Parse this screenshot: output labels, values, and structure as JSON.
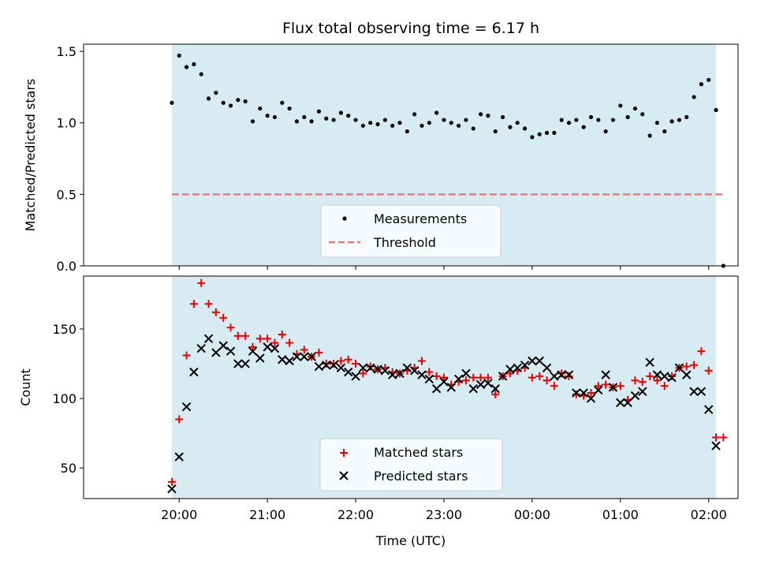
{
  "chart_data": [
    {
      "type": "scatter",
      "title": "Flux total observing time = 6.17 h",
      "ylabel": "Matched/Predicted stars",
      "ylim": [
        0,
        1.55
      ],
      "yticks": [
        "0.0",
        "0.5",
        "1.0",
        "1.5"
      ],
      "shaded_region": [
        "19:55",
        "02:05"
      ],
      "legend": "bottom-center",
      "series": [
        {
          "name": "Measurements",
          "marker": "dot",
          "color": "#000000",
          "x": [
            "19:55",
            "20:00",
            "20:05",
            "20:10",
            "20:15",
            "20:20",
            "20:25",
            "20:30",
            "20:35",
            "20:40",
            "20:45",
            "20:50",
            "20:55",
            "21:00",
            "21:05",
            "21:10",
            "21:15",
            "21:20",
            "21:25",
            "21:30",
            "21:35",
            "21:40",
            "21:45",
            "21:50",
            "21:55",
            "22:00",
            "22:05",
            "22:10",
            "22:15",
            "22:20",
            "22:25",
            "22:30",
            "22:35",
            "22:40",
            "22:45",
            "22:50",
            "22:55",
            "23:00",
            "23:05",
            "23:10",
            "23:15",
            "23:20",
            "23:25",
            "23:30",
            "23:35",
            "23:40",
            "23:45",
            "23:50",
            "23:55",
            "00:00",
            "00:05",
            "00:10",
            "00:15",
            "00:20",
            "00:25",
            "00:30",
            "00:35",
            "00:40",
            "00:45",
            "00:50",
            "00:55",
            "01:00",
            "01:05",
            "01:10",
            "01:15",
            "01:20",
            "01:25",
            "01:30",
            "01:35",
            "01:40",
            "01:45",
            "01:50",
            "01:55",
            "02:00",
            "02:05",
            "02:10"
          ],
          "values": [
            1.14,
            1.47,
            1.39,
            1.41,
            1.34,
            1.17,
            1.21,
            1.14,
            1.12,
            1.16,
            1.15,
            1.01,
            1.1,
            1.05,
            1.04,
            1.14,
            1.1,
            1.01,
            1.04,
            1.01,
            1.08,
            1.03,
            1.02,
            1.07,
            1.05,
            1.02,
            0.98,
            1.0,
            0.99,
            1.02,
            0.98,
            1.0,
            0.94,
            1.06,
            0.98,
            1.0,
            1.07,
            1.02,
            1.0,
            0.98,
            1.02,
            0.96,
            1.06,
            1.05,
            0.94,
            1.04,
            0.97,
            1.0,
            0.96,
            0.9,
            0.92,
            0.93,
            0.93,
            1.02,
            1.0,
            1.02,
            0.97,
            1.04,
            1.02,
            0.94,
            1.02,
            1.12,
            1.04,
            1.1,
            1.06,
            0.91,
            1.0,
            0.94,
            1.01,
            1.02,
            1.04,
            1.18,
            1.27,
            1.3,
            1.09,
            0.0
          ]
        },
        {
          "name": "Threshold",
          "style": "dashed",
          "color": "#f07070",
          "x": [
            "19:55",
            "02:10"
          ],
          "values": [
            0.5,
            0.5
          ]
        }
      ]
    },
    {
      "type": "scatter",
      "xlabel": "Time (UTC)",
      "ylabel": "Count",
      "ylim": [
        28,
        188
      ],
      "yticks": [
        "50",
        "100",
        "150"
      ],
      "xticks": [
        "20:00",
        "21:00",
        "22:00",
        "23:00",
        "00:00",
        "01:00",
        "02:00"
      ],
      "shaded_region": [
        "19:55",
        "02:05"
      ],
      "legend": "bottom-center",
      "series": [
        {
          "name": "Matched stars",
          "marker": "plus",
          "color": "#ee0000",
          "x": [
            "19:55",
            "20:00",
            "20:05",
            "20:10",
            "20:15",
            "20:20",
            "20:25",
            "20:30",
            "20:35",
            "20:40",
            "20:45",
            "20:50",
            "20:55",
            "21:00",
            "21:05",
            "21:10",
            "21:15",
            "21:20",
            "21:25",
            "21:30",
            "21:35",
            "21:40",
            "21:45",
            "21:50",
            "21:55",
            "22:00",
            "22:05",
            "22:10",
            "22:15",
            "22:20",
            "22:25",
            "22:30",
            "22:35",
            "22:40",
            "22:45",
            "22:50",
            "22:55",
            "23:00",
            "23:05",
            "23:10",
            "23:15",
            "23:20",
            "23:25",
            "23:30",
            "23:35",
            "23:40",
            "23:45",
            "23:50",
            "23:55",
            "00:00",
            "00:05",
            "00:10",
            "00:15",
            "00:20",
            "00:25",
            "00:30",
            "00:35",
            "00:40",
            "00:45",
            "00:50",
            "00:55",
            "01:00",
            "01:05",
            "01:10",
            "01:15",
            "01:20",
            "01:25",
            "01:30",
            "01:35",
            "01:40",
            "01:45",
            "01:50",
            "01:55",
            "02:00",
            "02:05",
            "02:10"
          ],
          "values": [
            40,
            85,
            131,
            168,
            183,
            168,
            162,
            158,
            151,
            145,
            145,
            137,
            143,
            143,
            140,
            146,
            140,
            132,
            135,
            130,
            133,
            125,
            125,
            127,
            128,
            125,
            118,
            123,
            121,
            122,
            119,
            118,
            120,
            122,
            127,
            119,
            116,
            115,
            110,
            112,
            113,
            115,
            115,
            115,
            103,
            116,
            118,
            120,
            122,
            115,
            116,
            113,
            109,
            118,
            116,
            103,
            102,
            104,
            109,
            110,
            108,
            109,
            99,
            113,
            112,
            116,
            113,
            109,
            116,
            122,
            123,
            124,
            134,
            120,
            72,
            72
          ]
        },
        {
          "name": "Predicted stars",
          "marker": "x",
          "color": "#000000",
          "x": [
            "19:55",
            "20:00",
            "20:05",
            "20:10",
            "20:15",
            "20:20",
            "20:25",
            "20:30",
            "20:35",
            "20:40",
            "20:45",
            "20:50",
            "20:55",
            "21:00",
            "21:05",
            "21:10",
            "21:15",
            "21:20",
            "21:25",
            "21:30",
            "21:35",
            "21:40",
            "21:45",
            "21:50",
            "21:55",
            "22:00",
            "22:05",
            "22:10",
            "22:15",
            "22:20",
            "22:25",
            "22:30",
            "22:35",
            "22:40",
            "22:45",
            "22:50",
            "22:55",
            "23:00",
            "23:05",
            "23:10",
            "23:15",
            "23:20",
            "23:25",
            "23:30",
            "23:35",
            "23:40",
            "23:45",
            "23:50",
            "23:55",
            "00:00",
            "00:05",
            "00:10",
            "00:15",
            "00:20",
            "00:25",
            "00:30",
            "00:35",
            "00:40",
            "00:45",
            "00:50",
            "00:55",
            "01:00",
            "01:05",
            "01:10",
            "01:15",
            "01:20",
            "01:25",
            "01:30",
            "01:35",
            "01:40",
            "01:45",
            "01:50",
            "01:55",
            "02:00",
            "02:05"
          ],
          "values": [
            35,
            58,
            94,
            119,
            136,
            143,
            133,
            138,
            134,
            125,
            125,
            134,
            129,
            137,
            136,
            128,
            127,
            130,
            130,
            130,
            123,
            124,
            124,
            122,
            119,
            116,
            122,
            122,
            121,
            120,
            117,
            118,
            122,
            120,
            117,
            114,
            107,
            112,
            108,
            114,
            118,
            107,
            110,
            111,
            107,
            116,
            121,
            122,
            124,
            127,
            127,
            122,
            116,
            117,
            117,
            104,
            104,
            100,
            106,
            117,
            108,
            97,
            97,
            102,
            105,
            126,
            117,
            116,
            115,
            122,
            117,
            105,
            105,
            92,
            66
          ]
        }
      ]
    }
  ]
}
